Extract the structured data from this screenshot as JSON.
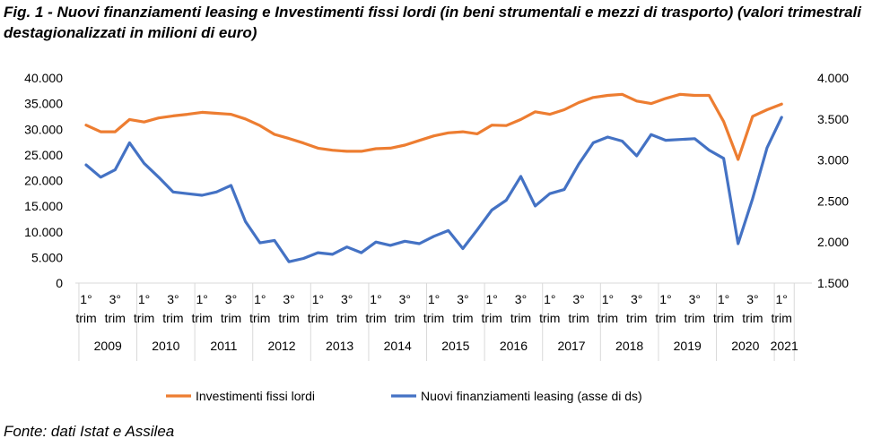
{
  "title": "Fig. 1 - Nuovi finanziamenti leasing e Investimenti fissi lordi (in beni strumentali e mezzi di trasporto) (valori trimestrali destagionalizzati in milioni di euro)",
  "source": "Fonte: dati Istat e Assilea",
  "chart_data": {
    "type": "line",
    "title": "",
    "xlabel": "",
    "ylabel": "",
    "grid": false,
    "legend_position": "bottom",
    "y_left": {
      "min": 0,
      "max": 40000,
      "ticks": [
        "0",
        "5.000",
        "10.000",
        "15.000",
        "20.000",
        "25.000",
        "30.000",
        "35.000",
        "40.000"
      ]
    },
    "y_right": {
      "min": 1500,
      "max": 4000,
      "ticks": [
        "1.500",
        "2.000",
        "2.500",
        "3.000",
        "3.500",
        "4.000"
      ]
    },
    "x_quarter_labels": [
      "1°",
      "trim",
      "3°",
      "trim"
    ],
    "last_quarter_label": [
      "1°",
      "trim"
    ],
    "years": [
      "2009",
      "2010",
      "2011",
      "2012",
      "2013",
      "2014",
      "2015",
      "2016",
      "2017",
      "2018",
      "2019",
      "2020",
      "2021"
    ],
    "x_count": 49,
    "series": [
      {
        "name": "Investimenti fissi lordi",
        "axis": "left",
        "color": "#ED7D31",
        "values": [
          30800,
          29500,
          29500,
          31900,
          31400,
          32200,
          32600,
          32900,
          33300,
          33100,
          32900,
          32000,
          30700,
          29000,
          28200,
          27300,
          26300,
          25900,
          25700,
          25700,
          26200,
          26300,
          26900,
          27800,
          28700,
          29300,
          29500,
          29100,
          30800,
          30700,
          31900,
          33400,
          32900,
          33800,
          35200,
          36200,
          36600,
          36800,
          35500,
          35000,
          36000,
          36800,
          36600,
          36600,
          31500,
          24100,
          32500,
          33800,
          34900
        ]
      },
      {
        "name": "Nuovi finanziamenti leasing (asse di ds)",
        "axis": "right",
        "color": "#4472C4",
        "values": [
          2940,
          2790,
          2880,
          3210,
          2960,
          2790,
          2610,
          2590,
          2570,
          2610,
          2690,
          2250,
          1990,
          2020,
          1760,
          1800,
          1870,
          1850,
          1940,
          1870,
          2000,
          1960,
          2010,
          1980,
          2070,
          2140,
          1920,
          2150,
          2390,
          2510,
          2800,
          2440,
          2590,
          2640,
          2950,
          3210,
          3280,
          3230,
          3050,
          3310,
          3240,
          3250,
          3260,
          3120,
          3020,
          1980,
          2530,
          3150,
          3520
        ]
      }
    ]
  }
}
